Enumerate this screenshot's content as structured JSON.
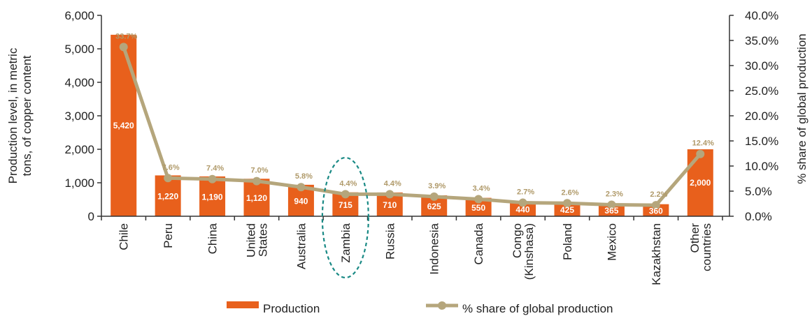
{
  "colors": {
    "bar": "#e8601c",
    "line": "#b5a67c",
    "highlight": "#1a8a85",
    "pct_label": "#b09a6a"
  },
  "chart_data": {
    "type": "bar",
    "categories": [
      [
        "Chile"
      ],
      [
        "Peru"
      ],
      [
        "China"
      ],
      [
        "United",
        "States"
      ],
      [
        "Australia"
      ],
      [
        "Zambia"
      ],
      [
        "Russia"
      ],
      [
        "Indonesia"
      ],
      [
        "Canada"
      ],
      [
        "Congo",
        "(Kinshasa)"
      ],
      [
        "Poland"
      ],
      [
        "Mexico"
      ],
      [
        "Kazakhstan"
      ],
      [
        "Other",
        "countries"
      ]
    ],
    "series": [
      {
        "name": "Production",
        "type": "bar",
        "axis": "left",
        "values": [
          5420,
          1220,
          1190,
          1120,
          940,
          715,
          710,
          625,
          550,
          440,
          425,
          365,
          360,
          2000
        ],
        "labels": [
          "5,420",
          "1,220",
          "1,190",
          "1,120",
          "940",
          "715",
          "710",
          "625",
          "550",
          "440",
          "425",
          "365",
          "360",
          "2,000"
        ]
      },
      {
        "name": "% share of global production",
        "type": "line",
        "axis": "right",
        "values": [
          33.7,
          7.6,
          7.4,
          7.0,
          5.8,
          4.4,
          4.4,
          3.9,
          3.4,
          2.7,
          2.6,
          2.3,
          2.2,
          12.4
        ],
        "labels": [
          "33.7%",
          "7.6%",
          "7.4%",
          "7.0%",
          "5.8%",
          "4.4%",
          "4.4%",
          "3.9%",
          "3.4%",
          "2.7%",
          "2.6%",
          "2.3%",
          "2.2%",
          "12.4%"
        ]
      }
    ],
    "ylabel": [
      "Production level, in metric",
      "tons, of copper content"
    ],
    "y2label": "% share of global production",
    "ylim": [
      0,
      6000
    ],
    "y2lim": [
      0,
      40
    ],
    "yticks": [
      "0",
      "1,000",
      "2,000",
      "3,000",
      "4,000",
      "5,000",
      "6,000"
    ],
    "y2ticks": [
      "0.0%",
      "5.0%",
      "10.0%",
      "15.0%",
      "20.0%",
      "25.0%",
      "30.0%",
      "35.0%",
      "40.0%"
    ],
    "highlight": "Zambia",
    "legend": [
      "Production",
      "% share of global production"
    ],
    "legend_position": "bottom"
  }
}
